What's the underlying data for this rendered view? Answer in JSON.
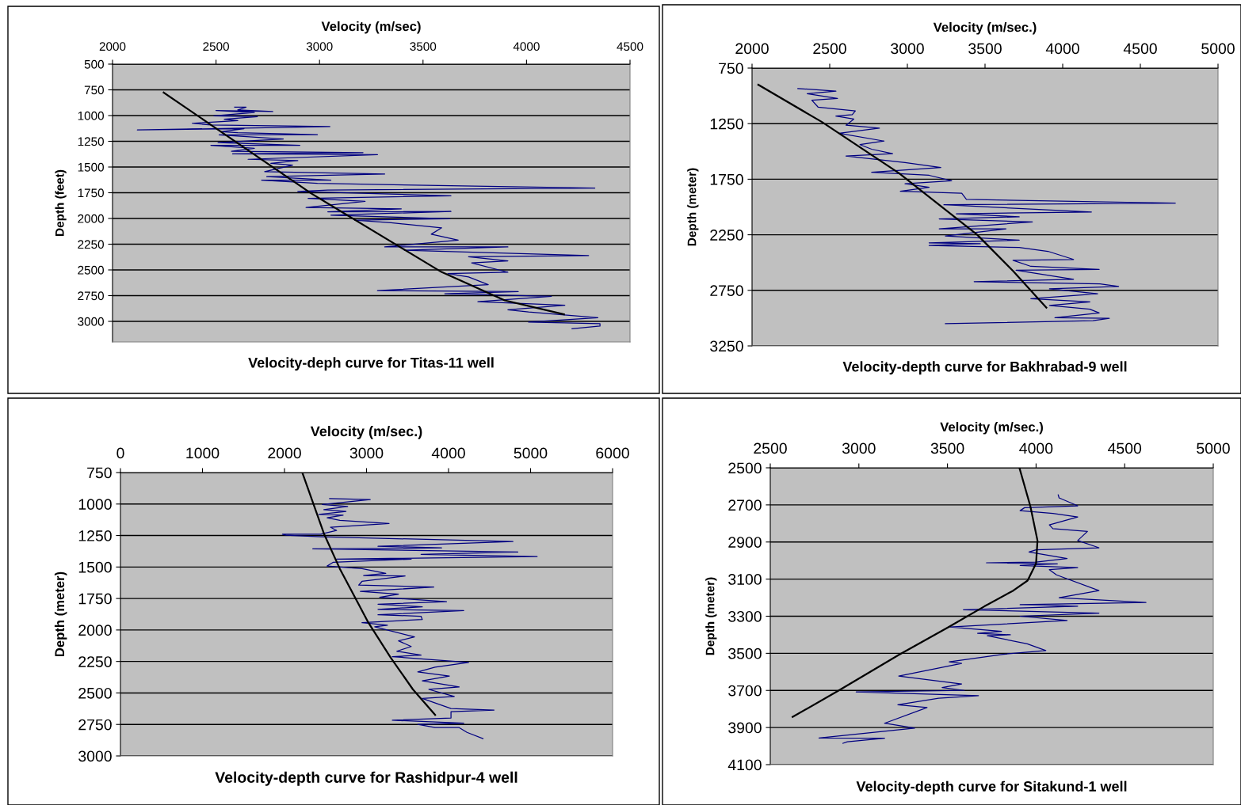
{
  "chart_data": [
    {
      "type": "line",
      "title": "Velocity-deph curve for Titas-11 well",
      "xlabel": "Velocity (m/sec)",
      "ylabel": "Depth (feet)",
      "xlim": [
        2000,
        4500
      ],
      "xticks": [
        2000,
        2500,
        3000,
        3500,
        4000,
        4500
      ],
      "ylim": [
        3200,
        500
      ],
      "yticks": [
        500,
        750,
        1000,
        1250,
        1500,
        1750,
        2000,
        2250,
        2500,
        2750,
        3000
      ],
      "grid": "y",
      "series": [
        {
          "color": "#000080",
          "x": [
            2590,
            2645,
            2605,
            2774,
            2500,
            2685,
            2490,
            2700,
            2540,
            2605,
            2385,
            2475,
            3050,
            2120,
            2635,
            2525,
            2605,
            2990,
            2515,
            2825,
            2510,
            2905,
            2475,
            2685,
            2575,
            3210,
            2580,
            3280,
            2655,
            2895,
            2765,
            2870,
            2735,
            3315,
            2745,
            3055,
            2720,
            2990,
            4330,
            3040,
            2895,
            3635,
            2945,
            3220,
            2935,
            3395,
            3040,
            3635,
            3055,
            3630,
            3170,
            3345,
            3590,
            3540,
            3670,
            3315,
            3910,
            3410,
            4300,
            3720,
            3910,
            3735,
            3910,
            3620,
            3720,
            3815,
            3280,
            3960,
            3605,
            4120,
            3765,
            4185,
            3910,
            4010,
            4345,
            4010,
            4355,
            4355,
            4220
          ],
          "values": [
            919,
            919,
            945,
            961,
            951,
            971,
            1003,
            1010,
            1036,
            1049,
            1075,
            1091,
            1107,
            1140,
            1127,
            1156,
            1166,
            1185,
            1188,
            1227,
            1263,
            1289,
            1289,
            1318,
            1347,
            1360,
            1373,
            1380,
            1425,
            1438,
            1464,
            1481,
            1545,
            1568,
            1594,
            1627,
            1627,
            1659,
            1705,
            1724,
            1737,
            1779,
            1805,
            1834,
            1893,
            1906,
            1935,
            1932,
            1968,
            2003,
            2016,
            2042,
            2091,
            2153,
            2211,
            2276,
            2276,
            2309,
            2360,
            2373,
            2412,
            2432,
            2523,
            2536,
            2568,
            2643,
            2701,
            2711,
            2731,
            2757,
            2809,
            2844,
            2887,
            2909,
            2964,
            3007,
            3023,
            3046,
            3072
          ]
        },
        {
          "color": "#000000",
          "x": [
            2247,
            2476,
            2960,
            3589,
            3895,
            4181
          ],
          "values": [
            776,
            1091,
            1757,
            2520,
            2796,
            2932
          ]
        }
      ]
    },
    {
      "type": "line",
      "title": "Velocity-depth curve for Bakhrabad-9 well",
      "xlabel": "Velocity (m/sec.)",
      "ylabel": "Depth (meter)",
      "xlim": [
        2000,
        5000
      ],
      "xticks": [
        2000,
        2500,
        3000,
        3500,
        4000,
        4500,
        5000
      ],
      "ylim": [
        3250,
        750
      ],
      "yticks": [
        750,
        1250,
        1750,
        2250,
        2750,
        3250
      ],
      "grid": "y",
      "series": [
        {
          "color": "#000080",
          "x": [
            2295,
            2540,
            2355,
            2550,
            2385,
            2425,
            2665,
            2645,
            2540,
            2655,
            2605,
            2820,
            2560,
            2850,
            2695,
            2770,
            2905,
            2605,
            2985,
            3215,
            2770,
            3140,
            3285,
            2985,
            3140,
            2955,
            3350,
            3380,
            4725,
            3235,
            4185,
            3315,
            3720,
            3205,
            3805,
            3205,
            3635,
            3245,
            3720,
            3140,
            3470,
            3140,
            3720,
            3905,
            4070,
            3680,
            3795,
            4235,
            3700,
            4070,
            3430,
            4240,
            4360,
            3915,
            4225,
            3795,
            4175,
            3915,
            4175,
            4235,
            3950,
            4300,
            4195,
            3245
          ],
          "values": [
            934,
            958,
            980,
            1023,
            1039,
            1101,
            1136,
            1169,
            1182,
            1209,
            1264,
            1291,
            1336,
            1407,
            1439,
            1480,
            1520,
            1542,
            1601,
            1645,
            1688,
            1715,
            1764,
            1791,
            1823,
            1858,
            1877,
            1931,
            1966,
            1980,
            2045,
            2061,
            2088,
            2107,
            2134,
            2196,
            2196,
            2261,
            2299,
            2323,
            2331,
            2347,
            2364,
            2399,
            2472,
            2480,
            2534,
            2561,
            2569,
            2650,
            2672,
            2691,
            2715,
            2737,
            2780,
            2826,
            2853,
            2885,
            2920,
            2953,
            2996,
            3002,
            3023,
            3050
          ]
        },
        {
          "color": "#000000",
          "x": [
            2040,
            2450,
            2945,
            3450,
            3680,
            3895
          ],
          "values": [
            900,
            1235,
            1695,
            2250,
            2575,
            2905
          ]
        }
      ]
    },
    {
      "type": "line",
      "title": "Velocity-depth curve for Rashidpur-4 well",
      "xlabel": "Velocity (m/sec.)",
      "ylabel": "Depth (meter)",
      "xlim": [
        0,
        6000
      ],
      "xticks": [
        0,
        1000,
        2000,
        3000,
        4000,
        5000,
        6000
      ],
      "ylim": [
        3000,
        750
      ],
      "yticks": [
        750,
        1000,
        1250,
        1500,
        1750,
        2000,
        2250,
        2500,
        2750,
        3000
      ],
      "grid": "y",
      "series": [
        {
          "color": "#000080",
          "x": [
            2550,
            3045,
            2460,
            2770,
            2480,
            2750,
            2420,
            2715,
            2520,
            2675,
            3275,
            2560,
            2635,
            2440,
            1975,
            2015,
            2440,
            4785,
            3140,
            3915,
            2345,
            4845,
            3665,
            5080,
            2635,
            3545,
            2595,
            2520,
            2945,
            3235,
            2965,
            3470,
            2945,
            2905,
            3820,
            2925,
            3390,
            3160,
            3975,
            3140,
            3680,
            3140,
            4185,
            3140,
            3665,
            3680,
            2945,
            3255,
            3100,
            3585,
            3390,
            3545,
            3370,
            3665,
            3315,
            4245,
            3835,
            3625,
            4010,
            3680,
            4130,
            3760,
            4070,
            3680,
            4030,
            4555,
            4030,
            4030,
            3315,
            4185,
            3625,
            3835,
            4130,
            4225,
            4420
          ],
          "values": [
            957,
            965,
            1003,
            1020,
            1045,
            1058,
            1083,
            1088,
            1109,
            1129,
            1154,
            1184,
            1210,
            1240,
            1240,
            1247,
            1260,
            1298,
            1336,
            1348,
            1356,
            1381,
            1399,
            1417,
            1437,
            1437,
            1462,
            1492,
            1513,
            1550,
            1568,
            1571,
            1614,
            1644,
            1659,
            1694,
            1715,
            1740,
            1775,
            1795,
            1816,
            1836,
            1846,
            1879,
            1891,
            1917,
            1942,
            1962,
            1975,
            2055,
            2086,
            2131,
            2169,
            2199,
            2212,
            2257,
            2295,
            2333,
            2366,
            2404,
            2452,
            2472,
            2528,
            2543,
            2624,
            2636,
            2649,
            2699,
            2717,
            2740,
            2750,
            2775,
            2775,
            2813,
            2863
          ]
        },
        {
          "color": "#000000",
          "x": [
            2217,
            2481,
            2674,
            3023,
            3295,
            3566,
            3837
          ],
          "values": [
            750,
            1235,
            1513,
            1942,
            2220,
            2472,
            2674
          ]
        }
      ]
    },
    {
      "type": "line",
      "title": "Velocity-depth curve for Sitakund-1 well",
      "xlabel": "Velocity (m/sec.)",
      "ylabel": "Depth (meter)",
      "xlim": [
        2500,
        5000
      ],
      "xticks": [
        2500,
        3000,
        3500,
        4000,
        4500,
        5000
      ],
      "ylim": [
        4100,
        2500
      ],
      "yticks": [
        2500,
        2700,
        2900,
        3100,
        3300,
        3500,
        3700,
        3900,
        4100
      ],
      "grid": "y",
      "series": [
        {
          "color": "#000080",
          "x": [
            4125,
            4130,
            4235,
            3935,
            3910,
            4095,
            4235,
            4075,
            4095,
            4290,
            4235,
            4355,
            4000,
            3960,
            4175,
            4000,
            3720,
            4120,
            3910,
            4235,
            4075,
            4115,
            4355,
            4130,
            4620,
            3910,
            4235,
            3590,
            4355,
            3910,
            4175,
            3515,
            3805,
            3670,
            3855,
            3725,
            3950,
            4055,
            3815,
            3510,
            3580,
            3225,
            3580,
            3470,
            3595,
            2985,
            3675,
            3450,
            3220,
            3385,
            3145,
            3315,
            2775,
            3145,
            2935,
            2910
          ],
          "values": [
            2646,
            2662,
            2705,
            2715,
            2731,
            2746,
            2765,
            2808,
            2828,
            2843,
            2892,
            2931,
            2942,
            2954,
            2989,
            3008,
            3012,
            3018,
            3026,
            3038,
            3049,
            3077,
            3162,
            3200,
            3226,
            3238,
            3246,
            3265,
            3283,
            3300,
            3323,
            3358,
            3382,
            3392,
            3400,
            3405,
            3449,
            3485,
            3505,
            3546,
            3554,
            3623,
            3665,
            3685,
            3700,
            3708,
            3728,
            3742,
            3777,
            3792,
            3877,
            3903,
            3957,
            3958,
            3977,
            3985
          ]
        },
        {
          "color": "#000000",
          "x": [
            3906,
            3968,
            4008,
            4000,
            3952,
            3871,
            3710,
            3500,
            3226,
            2887,
            2626
          ],
          "values": [
            2500,
            2708,
            2892,
            3015,
            3108,
            3162,
            3246,
            3362,
            3508,
            3700,
            3843
          ]
        }
      ]
    }
  ]
}
